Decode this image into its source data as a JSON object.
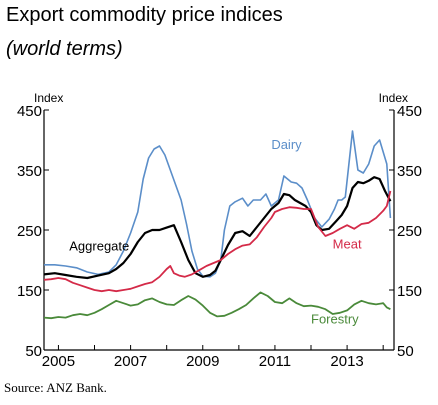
{
  "title": "Export commodity price indices",
  "subtitle": "(world terms)",
  "source": "Source: ANZ Bank.",
  "chart_data": {
    "type": "line",
    "ylabel_left": "Index",
    "ylabel_right": "Index",
    "ylim": [
      50,
      450
    ],
    "yticks": [
      50,
      150,
      250,
      350,
      450
    ],
    "xlim": [
      2004.6,
      2014.3
    ],
    "xticks": [
      2005,
      2007,
      2009,
      2011,
      2013
    ],
    "grid": false,
    "series": [
      {
        "name": "Dairy",
        "color": "#5b8ec9",
        "x": [
          2004.6,
          2004.9,
          2005.2,
          2005.5,
          2005.8,
          2006.1,
          2006.4,
          2006.6,
          2006.8,
          2007.0,
          2007.2,
          2007.35,
          2007.5,
          2007.65,
          2007.8,
          2007.95,
          2008.1,
          2008.25,
          2008.4,
          2008.55,
          2008.7,
          2008.85,
          2009.0,
          2009.2,
          2009.35,
          2009.5,
          2009.6,
          2009.75,
          2009.9,
          2010.1,
          2010.25,
          2010.4,
          2010.6,
          2010.75,
          2010.9,
          2011.1,
          2011.25,
          2011.45,
          2011.6,
          2011.75,
          2011.9,
          2012.1,
          2012.3,
          2012.5,
          2012.65,
          2012.75,
          2012.85,
          2012.95,
          2013.05,
          2013.15,
          2013.3,
          2013.45,
          2013.6,
          2013.75,
          2013.9,
          2014.0,
          2014.1,
          2014.2
        ],
        "values": [
          192,
          192,
          190,
          187,
          180,
          176,
          180,
          192,
          215,
          245,
          280,
          335,
          370,
          385,
          390,
          375,
          350,
          325,
          300,
          260,
          215,
          185,
          173,
          172,
          178,
          200,
          250,
          290,
          297,
          303,
          290,
          300,
          300,
          310,
          290,
          300,
          340,
          330,
          328,
          320,
          300,
          270,
          255,
          268,
          285,
          300,
          300,
          305,
          360,
          415,
          350,
          345,
          360,
          390,
          400,
          380,
          360,
          270
        ]
      },
      {
        "name": "Aggregate",
        "color": "#000000",
        "x": [
          2004.6,
          2004.9,
          2005.2,
          2005.5,
          2005.8,
          2006.1,
          2006.4,
          2006.6,
          2006.8,
          2007.0,
          2007.2,
          2007.4,
          2007.6,
          2007.8,
          2008.0,
          2008.2,
          2008.4,
          2008.6,
          2008.8,
          2009.0,
          2009.2,
          2009.35,
          2009.5,
          2009.7,
          2009.9,
          2010.1,
          2010.3,
          2010.5,
          2010.7,
          2010.9,
          2011.1,
          2011.25,
          2011.4,
          2011.55,
          2011.7,
          2011.85,
          2012.0,
          2012.15,
          2012.3,
          2012.5,
          2012.7,
          2012.85,
          2013.0,
          2013.15,
          2013.3,
          2013.45,
          2013.6,
          2013.75,
          2013.9,
          2014.05,
          2014.2
        ],
        "values": [
          176,
          178,
          175,
          172,
          170,
          174,
          178,
          185,
          195,
          210,
          230,
          245,
          250,
          250,
          254,
          258,
          230,
          200,
          178,
          172,
          175,
          182,
          200,
          225,
          245,
          248,
          240,
          255,
          270,
          285,
          295,
          310,
          308,
          300,
          295,
          290,
          280,
          258,
          250,
          252,
          265,
          275,
          290,
          320,
          330,
          328,
          332,
          338,
          335,
          315,
          298
        ]
      },
      {
        "name": "Meat",
        "color": "#d42a48",
        "x": [
          2004.6,
          2004.8,
          2005.0,
          2005.2,
          2005.4,
          2005.6,
          2005.8,
          2006.0,
          2006.2,
          2006.4,
          2006.6,
          2006.8,
          2007.0,
          2007.2,
          2007.4,
          2007.6,
          2007.8,
          2008.0,
          2008.1,
          2008.2,
          2008.35,
          2008.5,
          2008.7,
          2008.9,
          2009.1,
          2009.3,
          2009.5,
          2009.7,
          2009.9,
          2010.1,
          2010.3,
          2010.5,
          2010.7,
          2010.9,
          2011.0,
          2011.2,
          2011.4,
          2011.6,
          2011.8,
          2012.0,
          2012.2,
          2012.4,
          2012.6,
          2012.8,
          2013.0,
          2013.2,
          2013.4,
          2013.6,
          2013.8,
          2014.0,
          2014.1,
          2014.2
        ],
        "values": [
          167,
          168,
          170,
          168,
          162,
          158,
          154,
          150,
          148,
          150,
          148,
          150,
          152,
          156,
          160,
          163,
          172,
          185,
          190,
          178,
          174,
          172,
          176,
          183,
          190,
          195,
          200,
          210,
          218,
          224,
          226,
          238,
          255,
          270,
          280,
          285,
          288,
          287,
          285,
          285,
          255,
          240,
          245,
          252,
          258,
          252,
          260,
          262,
          270,
          282,
          290,
          315
        ]
      },
      {
        "name": "Forestry",
        "color": "#4a8a3a",
        "x": [
          2004.6,
          2004.8,
          2005.0,
          2005.2,
          2005.4,
          2005.6,
          2005.8,
          2006.0,
          2006.2,
          2006.4,
          2006.6,
          2006.8,
          2007.0,
          2007.2,
          2007.4,
          2007.6,
          2007.8,
          2008.0,
          2008.2,
          2008.4,
          2008.6,
          2008.8,
          2009.0,
          2009.2,
          2009.4,
          2009.6,
          2009.8,
          2010.0,
          2010.2,
          2010.4,
          2010.6,
          2010.8,
          2011.0,
          2011.2,
          2011.4,
          2011.6,
          2011.8,
          2012.0,
          2012.2,
          2012.4,
          2012.6,
          2012.8,
          2013.0,
          2013.2,
          2013.4,
          2013.6,
          2013.8,
          2014.0,
          2014.1,
          2014.2
        ],
        "values": [
          104,
          103,
          105,
          104,
          108,
          110,
          108,
          112,
          118,
          125,
          132,
          128,
          124,
          126,
          133,
          136,
          130,
          126,
          125,
          133,
          140,
          134,
          124,
          112,
          106,
          107,
          112,
          118,
          125,
          136,
          146,
          140,
          130,
          128,
          136,
          128,
          123,
          124,
          122,
          118,
          110,
          112,
          116,
          126,
          132,
          128,
          126,
          128,
          121,
          118
        ]
      }
    ],
    "annotations": [
      {
        "text": "Dairy",
        "x": 2010.9,
        "y": 385
      },
      {
        "text": "Aggregate",
        "x": 2005.3,
        "y": 216
      },
      {
        "text": "Meat",
        "x": 2012.6,
        "y": 219
      },
      {
        "text": "Forestry",
        "x": 2012.0,
        "y": 94
      }
    ]
  }
}
